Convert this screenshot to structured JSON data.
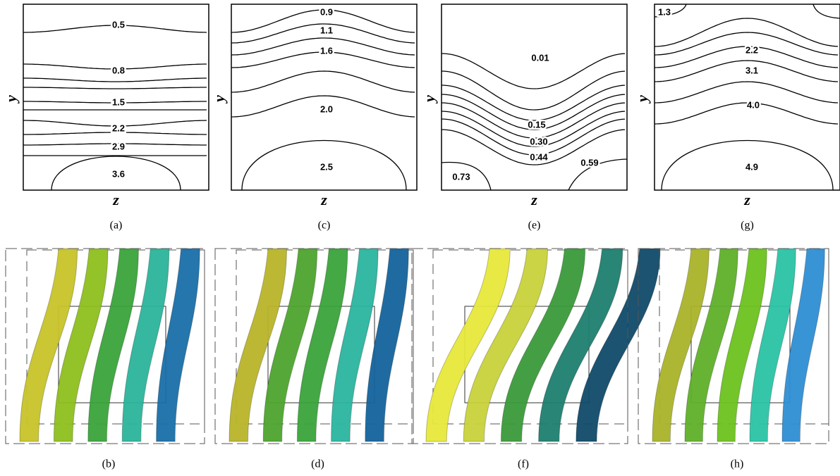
{
  "panels": [
    {
      "caption": "(a)",
      "y_label": "y",
      "x_label": "z",
      "contour_labels": [
        "0.5",
        "0.8",
        "1.5",
        "2.2",
        "2.9",
        "3.6"
      ]
    },
    {
      "caption": "(c)",
      "y_label": "y",
      "x_label": "z",
      "contour_labels": [
        "0.9",
        "1.1",
        "1.6",
        "2.0",
        "2.5"
      ]
    },
    {
      "caption": "(e)",
      "y_label": "y",
      "x_label": "z",
      "contour_labels": [
        "0.01",
        "0.15",
        "0.30",
        "0.44",
        "0.59",
        "0.73"
      ]
    },
    {
      "caption": "(g)",
      "y_label": "y",
      "x_label": "z",
      "contour_labels": [
        "1.3",
        "2.2",
        "3.1",
        "4.0",
        "4.9"
      ]
    }
  ],
  "surfaces": [
    {
      "caption": "(b)"
    },
    {
      "caption": "(d)"
    },
    {
      "caption": "(f)"
    },
    {
      "caption": "(h)"
    }
  ]
}
